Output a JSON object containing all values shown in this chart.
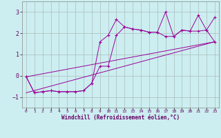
{
  "xlabel": "Windchill (Refroidissement éolien,°C)",
  "xlim": [
    -0.5,
    23.5
  ],
  "ylim": [
    -1.5,
    3.5
  ],
  "yticks": [
    -1,
    0,
    1,
    2,
    3
  ],
  "xticks": [
    0,
    1,
    2,
    3,
    4,
    5,
    6,
    7,
    8,
    9,
    10,
    11,
    12,
    13,
    14,
    15,
    16,
    17,
    18,
    19,
    20,
    21,
    22,
    23
  ],
  "bg_color": "#cceef0",
  "line_color": "#990099",
  "grid_color": "#aabbbb",
  "series1_x": [
    0,
    1,
    2,
    3,
    4,
    5,
    6,
    7,
    8,
    9,
    10,
    11,
    12,
    13,
    14,
    15,
    16,
    17,
    18,
    19,
    20,
    21,
    22,
    23
  ],
  "series1_y": [
    -0.05,
    -0.8,
    -0.75,
    -0.7,
    -0.75,
    -0.75,
    -0.75,
    -0.7,
    -0.35,
    1.6,
    1.9,
    2.65,
    2.3,
    2.2,
    2.15,
    2.05,
    2.05,
    3.0,
    1.85,
    2.15,
    2.1,
    2.85,
    2.15,
    2.75
  ],
  "series2_x": [
    0,
    1,
    2,
    3,
    4,
    5,
    6,
    7,
    8,
    9,
    10,
    11,
    12,
    13,
    14,
    15,
    16,
    17,
    18,
    19,
    20,
    21,
    22,
    23
  ],
  "series2_y": [
    -0.05,
    -0.8,
    -0.75,
    -0.7,
    -0.75,
    -0.75,
    -0.75,
    -0.7,
    -0.35,
    0.45,
    0.45,
    1.9,
    2.3,
    2.2,
    2.15,
    2.05,
    2.05,
    1.85,
    1.85,
    2.15,
    2.1,
    2.1,
    2.15,
    1.6
  ],
  "series3_x": [
    0,
    23
  ],
  "series3_y": [
    -0.05,
    1.6
  ],
  "series4_x": [
    0,
    23
  ],
  "series4_y": [
    -0.8,
    1.6
  ],
  "xtick_fontsize": 4.5,
  "ytick_fontsize": 6,
  "xlabel_fontsize": 5.5
}
